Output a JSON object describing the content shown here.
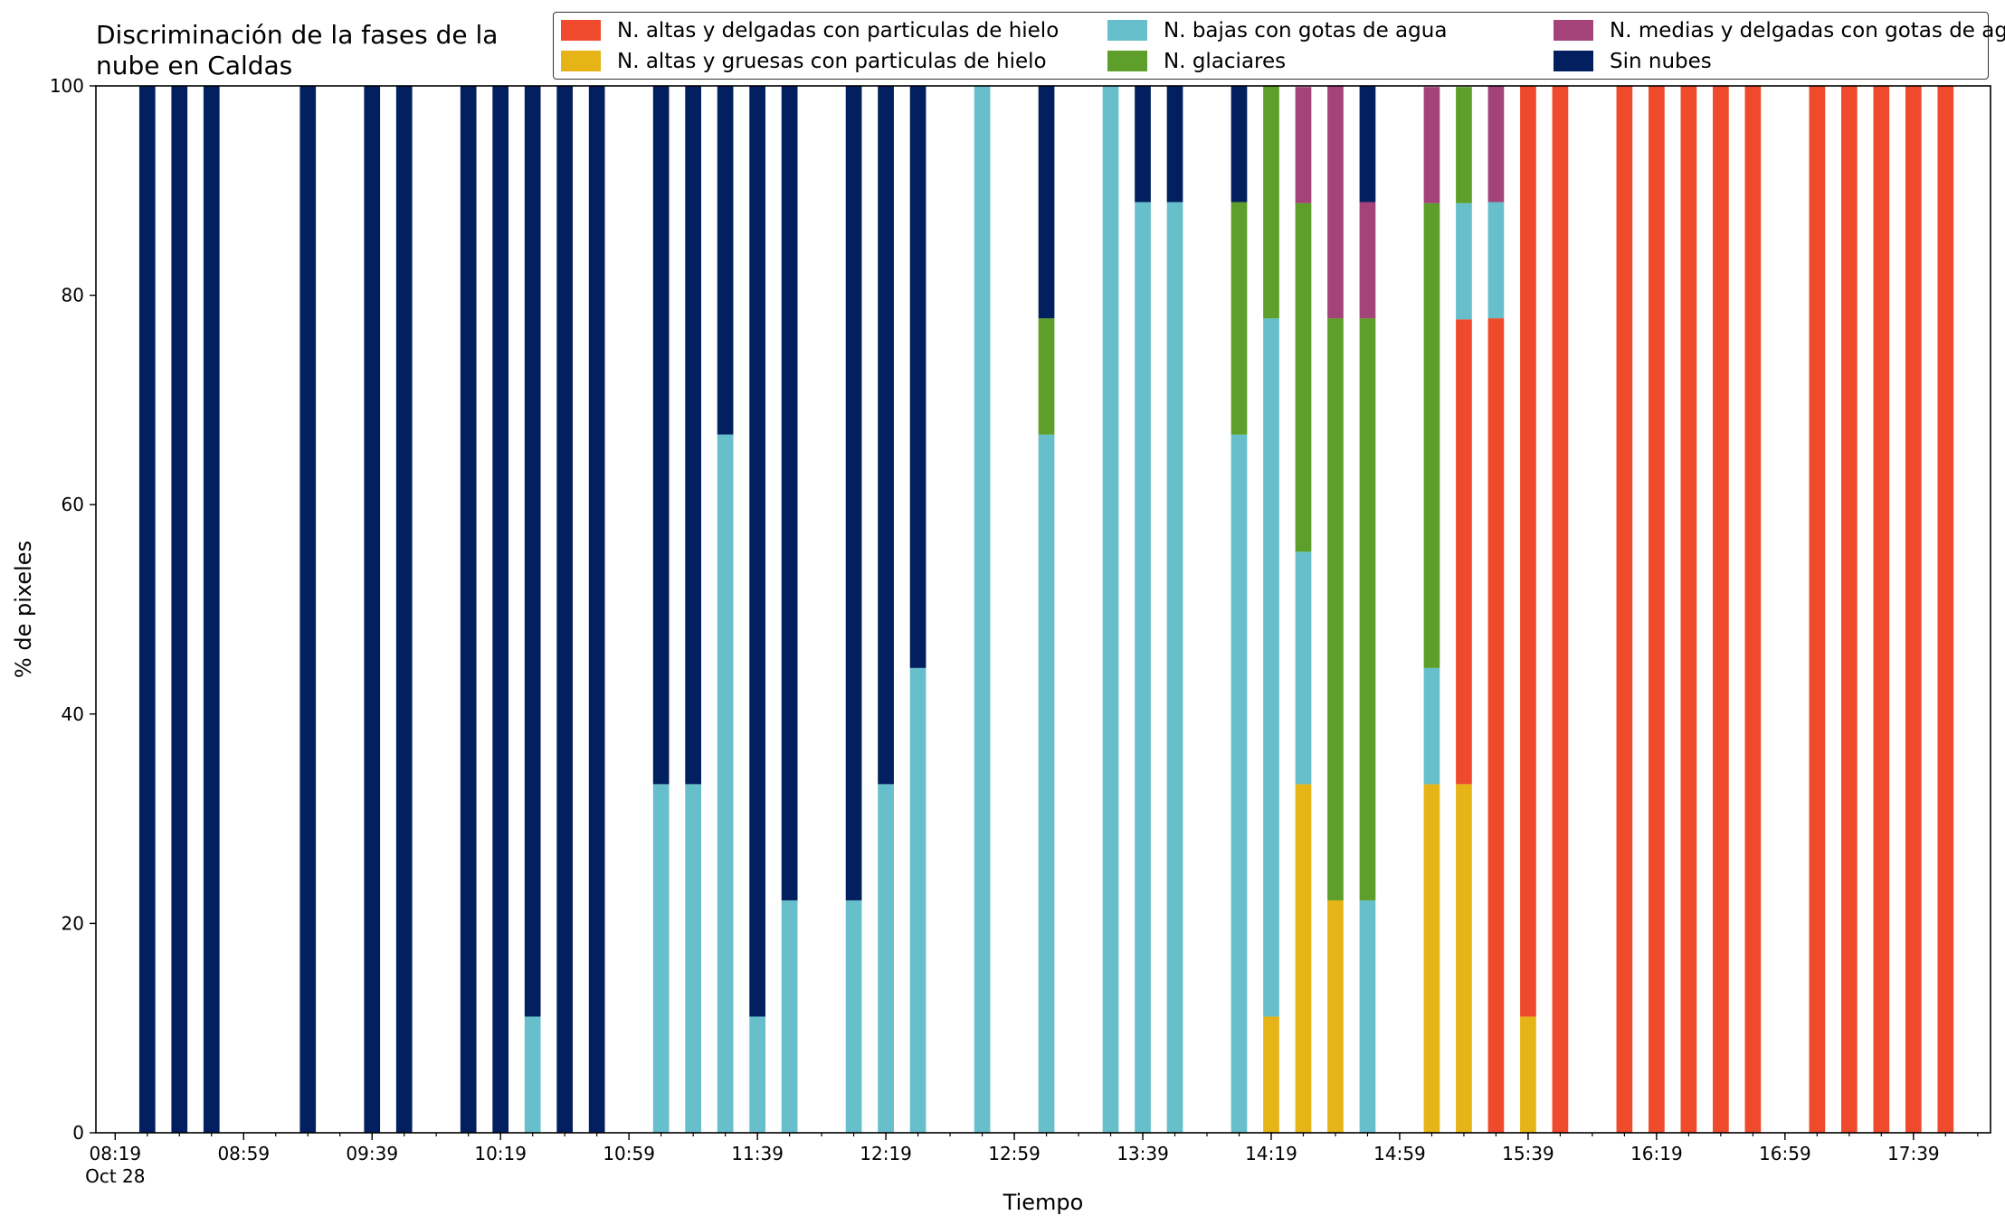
{
  "chart_data": {
    "type": "bar",
    "stacked": true,
    "title_lines": [
      "Discriminación de la fases de la",
      "nube en Caldas"
    ],
    "xlabel": "Tiempo",
    "ylabel": "% de pixeles",
    "ylim": [
      0,
      100
    ],
    "yticks": [
      0,
      20,
      40,
      60,
      80,
      100
    ],
    "grid": false,
    "legend_placement": "top-right, 3 columns",
    "x_range_minutes": [
      "08:13",
      "18:03"
    ],
    "x_tick_labels": [
      {
        "time": "08:19",
        "label": "08:19",
        "sublabel": "Oct 28"
      },
      {
        "time": "08:59",
        "label": "08:59"
      },
      {
        "time": "09:39",
        "label": "09:39"
      },
      {
        "time": "10:19",
        "label": "10:19"
      },
      {
        "time": "10:59",
        "label": "10:59"
      },
      {
        "time": "11:39",
        "label": "11:39"
      },
      {
        "time": "12:19",
        "label": "12:19"
      },
      {
        "time": "12:59",
        "label": "12:59"
      },
      {
        "time": "13:39",
        "label": "13:39"
      },
      {
        "time": "14:19",
        "label": "14:19"
      },
      {
        "time": "14:59",
        "label": "14:59"
      },
      {
        "time": "15:39",
        "label": "15:39"
      },
      {
        "time": "16:19",
        "label": "16:19"
      },
      {
        "time": "16:59",
        "label": "16:59"
      },
      {
        "time": "17:39",
        "label": "17:39"
      }
    ],
    "minor_tick_step_minutes": 10,
    "series_order_bottom_to_top": [
      "altas_gruesas",
      "altas_delgadas",
      "bajas",
      "glaciares",
      "medias",
      "sin_nubes"
    ],
    "series": [
      {
        "key": "altas_delgadas",
        "name": "N. altas y delgadas con particulas de hielo",
        "color": "#ef4a2b"
      },
      {
        "key": "altas_gruesas",
        "name": "N. altas y gruesas con particulas de hielo",
        "color": "#e6b416"
      },
      {
        "key": "bajas",
        "name": "N. bajas con gotas de agua",
        "color": "#66bfca"
      },
      {
        "key": "glaciares",
        "name": "N. glaciares",
        "color": "#5e9e2a"
      },
      {
        "key": "medias",
        "name": "N. medias y delgadas con gotas de agua",
        "color": "#a3437a"
      },
      {
        "key": "sin_nubes",
        "name": "Sin nubes",
        "color": "#021f5f"
      }
    ],
    "bars": [
      {
        "time": "08:29",
        "sin_nubes": 100
      },
      {
        "time": "08:39",
        "sin_nubes": 100
      },
      {
        "time": "08:49",
        "sin_nubes": 100
      },
      {
        "time": "09:19",
        "sin_nubes": 100
      },
      {
        "time": "09:39",
        "sin_nubes": 100
      },
      {
        "time": "09:49",
        "sin_nubes": 100
      },
      {
        "time": "10:09",
        "sin_nubes": 100
      },
      {
        "time": "10:19",
        "sin_nubes": 100
      },
      {
        "time": "10:29",
        "bajas": 11.1,
        "sin_nubes": 88.9
      },
      {
        "time": "10:39",
        "sin_nubes": 100
      },
      {
        "time": "10:49",
        "sin_nubes": 100
      },
      {
        "time": "11:09",
        "bajas": 33.3,
        "sin_nubes": 66.7
      },
      {
        "time": "11:19",
        "bajas": 33.3,
        "sin_nubes": 66.7
      },
      {
        "time": "11:29",
        "bajas": 66.7,
        "sin_nubes": 33.3
      },
      {
        "time": "11:39",
        "bajas": 11.1,
        "sin_nubes": 88.9
      },
      {
        "time": "11:49",
        "bajas": 22.2,
        "sin_nubes": 77.8
      },
      {
        "time": "12:09",
        "bajas": 22.2,
        "sin_nubes": 77.8
      },
      {
        "time": "12:19",
        "bajas": 33.3,
        "sin_nubes": 66.7
      },
      {
        "time": "12:29",
        "bajas": 44.4,
        "sin_nubes": 55.6
      },
      {
        "time": "12:49",
        "bajas": 100
      },
      {
        "time": "13:09",
        "bajas": 66.7,
        "glaciares": 11.1,
        "sin_nubes": 22.2
      },
      {
        "time": "13:29",
        "bajas": 100
      },
      {
        "time": "13:39",
        "bajas": 88.9,
        "sin_nubes": 11.1
      },
      {
        "time": "13:49",
        "bajas": 88.9,
        "sin_nubes": 11.1
      },
      {
        "time": "14:09",
        "bajas": 66.7,
        "glaciares": 22.2,
        "sin_nubes": 11.1
      },
      {
        "time": "14:19",
        "altas_gruesas": 11.1,
        "bajas": 66.7,
        "glaciares": 22.2
      },
      {
        "time": "14:29",
        "altas_gruesas": 33.3,
        "bajas": 22.2,
        "glaciares": 33.3,
        "medias": 11.1
      },
      {
        "time": "14:39",
        "altas_gruesas": 22.2,
        "glaciares": 55.6,
        "medias": 22.2
      },
      {
        "time": "14:49",
        "bajas": 22.2,
        "glaciares": 55.6,
        "medias": 11.1,
        "sin_nubes": 11.1
      },
      {
        "time": "15:09",
        "altas_gruesas": 33.3,
        "bajas": 11.1,
        "glaciares": 44.4,
        "medias": 11.1
      },
      {
        "time": "15:19",
        "altas_gruesas": 33.3,
        "altas_delgadas": 44.4,
        "bajas": 11.1,
        "glaciares": 11.1
      },
      {
        "time": "15:29",
        "altas_delgadas": 77.8,
        "bajas": 11.1,
        "medias": 11.1
      },
      {
        "time": "15:39",
        "altas_delgadas": 88.9,
        "altas_gruesas": 11.1
      },
      {
        "time": "15:49",
        "altas_delgadas": 100
      },
      {
        "time": "16:09",
        "altas_delgadas": 100
      },
      {
        "time": "16:19",
        "altas_delgadas": 100
      },
      {
        "time": "16:29",
        "altas_delgadas": 100
      },
      {
        "time": "16:39",
        "altas_delgadas": 100
      },
      {
        "time": "16:49",
        "altas_delgadas": 100
      },
      {
        "time": "17:09",
        "altas_delgadas": 100
      },
      {
        "time": "17:19",
        "altas_delgadas": 100
      },
      {
        "time": "17:29",
        "altas_delgadas": 100
      },
      {
        "time": "17:39",
        "altas_delgadas": 100
      },
      {
        "time": "17:49",
        "altas_delgadas": 100
      }
    ]
  }
}
